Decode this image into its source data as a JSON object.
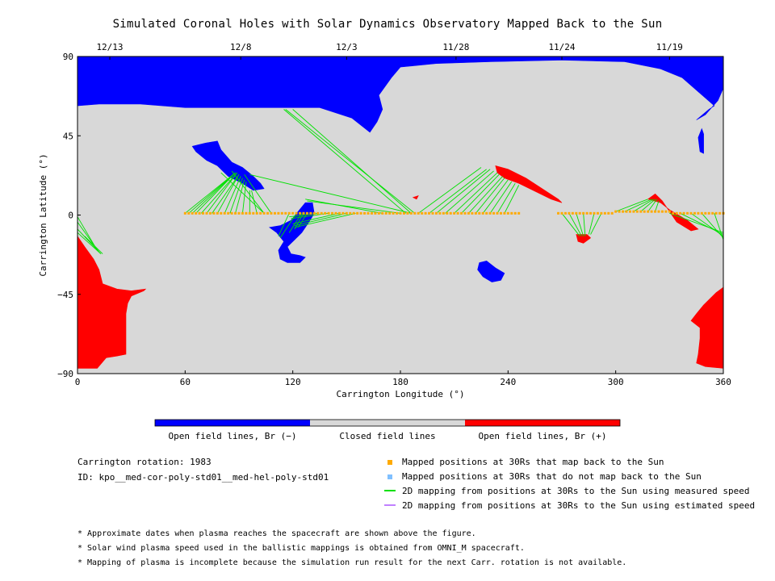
{
  "title": "Simulated Coronal Holes with Solar Dynamics Observatory Mapped Back to the Sun",
  "colors": {
    "open_negative": "#0000ff",
    "closed": "#d8d8d8",
    "open_positive": "#ff0000",
    "mapped_back": "#ffaa00",
    "not_mapped_back": "#80c0ff",
    "measured_speed": "#00e000",
    "estimated_speed": "#c080ff"
  },
  "colorbar": {
    "labels": [
      "Open field lines, Br (−)",
      "Closed field lines",
      "Open field lines, Br (+)"
    ]
  },
  "info": {
    "carrington_rotation": "Carrington rotation: 1983",
    "id": "ID: kpo__med-cor-poly-std01__med-hel-poly-std01"
  },
  "legend": {
    "mapped_back": "Mapped positions at 30Rs that map back to the Sun",
    "not_mapped_back": "Mapped positions at 30Rs that do not map back to the Sun",
    "measured_speed": "2D mapping from positions at 30Rs to the Sun using measured speed",
    "estimated_speed": "2D mapping from positions at 30Rs to the Sun using estimated speed"
  },
  "notes": [
    "* Approximate dates when plasma reaches the spacecraft are shown above the figure.",
    "* Solar wind plasma speed used in the ballistic mappings is obtained from OMNI_M spacecraft.",
    "* Mapping of plasma is incomplete because the simulation run result for the next Carr. rotation is not available."
  ],
  "chart_data": {
    "type": "map",
    "xlabel": "Carrington Longitude (°)",
    "ylabel": "Carrington Latitude (°)",
    "xlim": [
      0,
      360
    ],
    "ylim": [
      -90,
      90
    ],
    "x_ticks": [
      0,
      60,
      120,
      180,
      240,
      300,
      360
    ],
    "y_ticks": [
      90,
      45,
      0,
      -45,
      -90
    ],
    "y_tick_labels": [
      "90",
      "45",
      "0",
      "−45",
      "−90"
    ],
    "date_axis": [
      {
        "label": "12/13",
        "lon": 18
      },
      {
        "label": "12/8",
        "lon": 91
      },
      {
        "label": "12/3",
        "lon": 150
      },
      {
        "label": "11/28",
        "lon": 211
      },
      {
        "label": "11/24",
        "lon": 270
      },
      {
        "label": "11/19",
        "lon": 330
      }
    ],
    "regions": [
      {
        "name": "north-polar-open-negative",
        "polarity": "open_negative",
        "points": [
          [
            0,
            90
          ],
          [
            360,
            90
          ],
          [
            360,
            72
          ],
          [
            357,
            65
          ],
          [
            350,
            57
          ],
          [
            345,
            54
          ],
          [
            352,
            60
          ],
          [
            355,
            62
          ],
          [
            346,
            70
          ],
          [
            337,
            78
          ],
          [
            325,
            83
          ],
          [
            305,
            87
          ],
          [
            270,
            88
          ],
          [
            230,
            87
          ],
          [
            200,
            86
          ],
          [
            180,
            84
          ],
          [
            175,
            78
          ],
          [
            168,
            68
          ],
          [
            170,
            60
          ],
          [
            167,
            53
          ],
          [
            163,
            47
          ],
          [
            153,
            55
          ],
          [
            135,
            61
          ],
          [
            115,
            61
          ],
          [
            96,
            61
          ],
          [
            80,
            61
          ],
          [
            60,
            61
          ],
          [
            35,
            63
          ],
          [
            12,
            63
          ],
          [
            0,
            62
          ]
        ]
      },
      {
        "name": "coronal-hole-1",
        "polarity": "open_negative",
        "points": [
          [
            64,
            39
          ],
          [
            72,
            41
          ],
          [
            78,
            42
          ],
          [
            80,
            37
          ],
          [
            86,
            30
          ],
          [
            92,
            27
          ],
          [
            98,
            22
          ],
          [
            102,
            18
          ],
          [
            104,
            15
          ],
          [
            98,
            14
          ],
          [
            92,
            18
          ],
          [
            84,
            22
          ],
          [
            78,
            28
          ],
          [
            72,
            31
          ],
          [
            66,
            36
          ]
        ]
      },
      {
        "name": "coronal-hole-2",
        "polarity": "open_negative",
        "points": [
          [
            127,
            7
          ],
          [
            131,
            7
          ],
          [
            132,
            1
          ],
          [
            129,
            -4
          ],
          [
            125,
            -10
          ],
          [
            121,
            -14
          ],
          [
            117,
            -18
          ],
          [
            119,
            -22
          ],
          [
            124,
            -23
          ],
          [
            127,
            -24
          ],
          [
            124,
            -27
          ],
          [
            117,
            -27
          ],
          [
            113,
            -25
          ],
          [
            112,
            -20
          ],
          [
            115,
            -15
          ],
          [
            111,
            -10
          ],
          [
            107,
            -7
          ],
          [
            113,
            -6
          ],
          [
            119,
            -3
          ],
          [
            123,
            2
          ]
        ]
      },
      {
        "name": "coronal-hole-3",
        "polarity": "open_negative",
        "points": [
          [
            224,
            -27
          ],
          [
            228,
            -26
          ],
          [
            233,
            -30
          ],
          [
            238,
            -33
          ],
          [
            236,
            -37
          ],
          [
            231,
            -38
          ],
          [
            226,
            -35
          ],
          [
            223,
            -31
          ]
        ]
      },
      {
        "name": "small-hole-north",
        "polarity": "open_negative",
        "points": [
          [
            348,
            49
          ],
          [
            349,
            46
          ],
          [
            349,
            35
          ],
          [
            347,
            36
          ],
          [
            346,
            44
          ]
        ]
      },
      {
        "name": "open-positive-south-left",
        "polarity": "open_positive",
        "points": [
          [
            0,
            -12
          ],
          [
            4,
            -18
          ],
          [
            9,
            -25
          ],
          [
            12,
            -31
          ],
          [
            14,
            -39
          ],
          [
            22,
            -42
          ],
          [
            30,
            -43
          ],
          [
            38,
            -42
          ],
          [
            37,
            -43
          ],
          [
            30,
            -46
          ],
          [
            28,
            -50
          ],
          [
            27,
            -56
          ],
          [
            27,
            -65
          ],
          [
            27,
            -79
          ],
          [
            22,
            -80
          ],
          [
            16,
            -81
          ],
          [
            11,
            -87
          ],
          [
            0,
            -87
          ]
        ]
      },
      {
        "name": "open-positive-south-right",
        "polarity": "open_positive",
        "points": [
          [
            360,
            -41
          ],
          [
            356,
            -44
          ],
          [
            349,
            -51
          ],
          [
            345,
            -56
          ],
          [
            342,
            -60
          ],
          [
            347,
            -64
          ],
          [
            347,
            -70
          ],
          [
            346,
            -79
          ],
          [
            345,
            -84
          ],
          [
            350,
            -86
          ],
          [
            360,
            -87
          ]
        ]
      },
      {
        "name": "open-positive-band-1",
        "polarity": "open_positive",
        "points": [
          [
            233,
            28
          ],
          [
            240,
            26
          ],
          [
            250,
            21
          ],
          [
            262,
            13
          ],
          [
            268,
            9
          ],
          [
            270,
            7
          ],
          [
            264,
            9
          ],
          [
            256,
            13
          ],
          [
            246,
            18
          ],
          [
            238,
            21
          ],
          [
            234,
            24
          ]
        ]
      },
      {
        "name": "open-positive-band-2",
        "polarity": "open_positive",
        "points": [
          [
            318,
            9
          ],
          [
            322,
            12
          ],
          [
            326,
            8
          ],
          [
            334,
            -4
          ],
          [
            342,
            -9
          ],
          [
            346,
            -8
          ],
          [
            340,
            -3
          ],
          [
            330,
            3
          ],
          [
            325,
            7
          ]
        ]
      },
      {
        "name": "open-positive-dip",
        "polarity": "open_positive",
        "points": [
          [
            278,
            -11
          ],
          [
            284,
            -11
          ],
          [
            286,
            -13
          ],
          [
            282,
            -16
          ],
          [
            279,
            -15
          ]
        ]
      },
      {
        "name": "open-positive-speck",
        "polarity": "open_positive",
        "points": [
          [
            187,
            10
          ],
          [
            190,
            11
          ],
          [
            189,
            9
          ]
        ]
      }
    ],
    "spacecraft_lon_range": [
      60,
      360
    ],
    "spacecraft_lat": 1,
    "mapping_segments": [
      [
        [
          60,
          1
        ],
        [
          88,
          24
        ]
      ],
      [
        [
          62,
          1
        ],
        [
          88,
          24
        ]
      ],
      [
        [
          64,
          1
        ],
        [
          88,
          24
        ]
      ],
      [
        [
          66,
          1
        ],
        [
          88,
          24
        ]
      ],
      [
        [
          69,
          1
        ],
        [
          89,
          24
        ]
      ],
      [
        [
          72,
          1
        ],
        [
          89,
          24
        ]
      ],
      [
        [
          75,
          1
        ],
        [
          90,
          23
        ]
      ],
      [
        [
          78,
          1
        ],
        [
          90,
          23
        ]
      ],
      [
        [
          82,
          1
        ],
        [
          91,
          22
        ]
      ],
      [
        [
          85,
          1
        ],
        [
          92,
          21
        ]
      ],
      [
        [
          88,
          1
        ],
        [
          93,
          20
        ]
      ],
      [
        [
          92,
          1
        ],
        [
          94,
          19
        ]
      ],
      [
        [
          96,
          1
        ],
        [
          96,
          14
        ]
      ],
      [
        [
          100,
          1
        ],
        [
          97,
          14
        ]
      ],
      [
        [
          104,
          1
        ],
        [
          80,
          24
        ]
      ],
      [
        [
          104,
          1
        ],
        [
          86,
          25
        ]
      ],
      [
        [
          108,
          1
        ],
        [
          93,
          23
        ]
      ],
      [
        [
          118,
          1
        ],
        [
          112,
          -12
        ]
      ],
      [
        [
          122,
          1
        ],
        [
          113,
          -13
        ]
      ],
      [
        [
          125,
          1
        ],
        [
          118,
          -10
        ]
      ],
      [
        [
          126,
          1
        ],
        [
          121,
          -8
        ]
      ],
      [
        [
          128,
          1
        ],
        [
          123,
          -7
        ]
      ],
      [
        [
          134,
          1
        ],
        [
          118,
          -1
        ]
      ],
      [
        [
          140,
          1
        ],
        [
          119,
          -2
        ]
      ],
      [
        [
          146,
          1
        ],
        [
          120,
          -5
        ]
      ],
      [
        [
          150,
          1
        ],
        [
          121,
          -6
        ]
      ],
      [
        [
          155,
          1
        ],
        [
          121,
          -7
        ]
      ],
      [
        [
          170,
          1
        ],
        [
          127,
          9
        ]
      ],
      [
        [
          180,
          1
        ],
        [
          128,
          8
        ]
      ],
      [
        [
          186,
          1
        ],
        [
          96,
          23
        ]
      ],
      [
        [
          183,
          1
        ],
        [
          115,
          60
        ]
      ],
      [
        [
          186,
          1
        ],
        [
          120,
          60
        ]
      ],
      [
        [
          188,
          1
        ],
        [
          116,
          60
        ]
      ],
      [
        [
          190,
          1
        ],
        [
          225,
          27
        ]
      ],
      [
        [
          196,
          1
        ],
        [
          228,
          26
        ]
      ],
      [
        [
          200,
          1
        ],
        [
          230,
          26
        ]
      ],
      [
        [
          205,
          1
        ],
        [
          232,
          25
        ]
      ],
      [
        [
          210,
          1
        ],
        [
          234,
          24
        ]
      ],
      [
        [
          214,
          1
        ],
        [
          235,
          23
        ]
      ],
      [
        [
          218,
          1
        ],
        [
          237,
          22
        ]
      ],
      [
        [
          222,
          1
        ],
        [
          238,
          21
        ]
      ],
      [
        [
          226,
          1
        ],
        [
          240,
          20
        ]
      ],
      [
        [
          230,
          1
        ],
        [
          242,
          19
        ]
      ],
      [
        [
          234,
          1
        ],
        [
          244,
          18
        ]
      ],
      [
        [
          238,
          1
        ],
        [
          246,
          17
        ]
      ],
      [
        [
          270,
          1
        ],
        [
          280,
          -12
        ]
      ],
      [
        [
          274,
          1
        ],
        [
          281,
          -12
        ]
      ],
      [
        [
          278,
          1
        ],
        [
          282,
          -12
        ]
      ],
      [
        [
          282,
          1
        ],
        [
          283,
          -12
        ]
      ],
      [
        [
          288,
          1
        ],
        [
          285,
          -11
        ]
      ],
      [
        [
          292,
          1
        ],
        [
          286,
          -11
        ]
      ],
      [
        [
          300,
          2
        ],
        [
          318,
          9
        ]
      ],
      [
        [
          305,
          2
        ],
        [
          320,
          9
        ]
      ],
      [
        [
          310,
          2
        ],
        [
          321,
          9
        ]
      ],
      [
        [
          314,
          2
        ],
        [
          322,
          9
        ]
      ],
      [
        [
          318,
          2
        ],
        [
          323,
          9
        ]
      ],
      [
        [
          322,
          2
        ],
        [
          324,
          8
        ]
      ],
      [
        [
          330,
          1
        ],
        [
          360,
          -10
        ]
      ],
      [
        [
          336,
          1
        ],
        [
          360,
          -11
        ]
      ],
      [
        [
          342,
          1
        ],
        [
          360,
          -12
        ]
      ],
      [
        [
          348,
          1
        ],
        [
          360,
          -13
        ]
      ],
      [
        [
          355,
          1
        ],
        [
          360,
          -14
        ]
      ],
      [
        [
          0,
          -4
        ],
        [
          12,
          -21
        ]
      ],
      [
        [
          0,
          -8
        ],
        [
          13,
          -22
        ]
      ],
      [
        [
          0,
          -10
        ],
        [
          13,
          -22
        ]
      ],
      [
        [
          0,
          -1
        ],
        [
          11,
          -20
        ]
      ],
      [
        [
          4,
          -12
        ],
        [
          14,
          -22
        ]
      ]
    ]
  }
}
